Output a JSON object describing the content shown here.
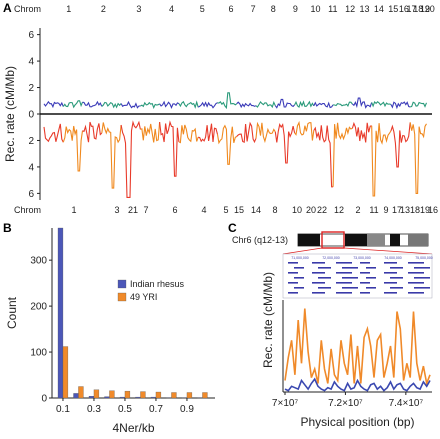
{
  "chart_data": [
    {
      "panel": "A",
      "type": "line",
      "ylabel": "Rec. rate (cM/Mb)",
      "ylim": [
        -6.5,
        6.5
      ],
      "yticks": [
        6,
        4,
        2,
        0,
        2,
        4,
        6
      ],
      "top_axis_label": "Chrom",
      "bottom_axis_label": "Chrom",
      "top_chromosomes": [
        "1",
        "2",
        "3",
        "4",
        "5",
        "6",
        "7",
        "8",
        "9",
        "10",
        "11",
        "12",
        "13",
        "14",
        "15",
        "16",
        "17",
        "18",
        "19",
        "20"
      ],
      "bottom_chromosomes": [
        "1",
        "3",
        "21",
        "7",
        "6",
        "4",
        "5",
        "15",
        "14",
        "8",
        "10",
        "20",
        "22",
        "12",
        "2",
        "11",
        "9",
        "17",
        "13",
        "18",
        "19",
        "16"
      ],
      "series": [
        {
          "name": "rhesus (top)",
          "color_segments": [
            "#3a3ab8",
            "#2a9a7a"
          ],
          "mean": 0.7,
          "spikes": [
            [
              0.48,
              1.6
            ],
            [
              0.09,
              1.0
            ],
            [
              0.62,
              1.1
            ],
            [
              0.82,
              1.2
            ]
          ]
        },
        {
          "name": "YRI (bottom)",
          "color_segments": [
            "#e83a2a",
            "#f0891e"
          ],
          "mean": -1.4,
          "spikes": [
            [
              0.09,
              -4.3
            ],
            [
              0.18,
              -5.6
            ],
            [
              0.22,
              -6.3
            ],
            [
              0.34,
              -4.7
            ],
            [
              0.48,
              -3.8
            ],
            [
              0.63,
              -3.7
            ],
            [
              0.75,
              -5.5
            ],
            [
              0.86,
              -6.2
            ],
            [
              0.92,
              -4.0
            ],
            [
              0.97,
              -6.0
            ]
          ]
        }
      ]
    },
    {
      "panel": "B",
      "type": "bar",
      "ylabel": "Count",
      "xlabel": "4Ner/kb",
      "ylim": [
        0,
        370
      ],
      "yticks": [
        0,
        100,
        200,
        300
      ],
      "xticks": [
        "0.1",
        "0.3",
        "0.5",
        "0.7",
        "0.9"
      ],
      "categories": [
        "0.1",
        "0.2",
        "0.3",
        "0.4",
        "0.5",
        "0.6",
        "0.7",
        "0.8",
        "0.9",
        "1.0"
      ],
      "series": [
        {
          "name": "Indian rhesus",
          "color": "#4c57b8",
          "values": [
            370,
            10,
            4,
            3,
            2,
            2,
            2,
            1,
            1,
            1
          ]
        },
        {
          "name": "49 YRI",
          "color": "#f08a2a",
          "values": [
            112,
            25,
            18,
            16,
            15,
            14,
            13,
            12,
            12,
            12
          ]
        }
      ]
    },
    {
      "panel": "C",
      "type": "line",
      "ylabel": "Rec. rate (cM/Mb)",
      "xlabel": "Physical position (bp)",
      "ylim": [
        0,
        3.2
      ],
      "xlim": [
        70000000,
        74800000
      ],
      "xticks": [
        "7×10⁷",
        "7.2×10⁷",
        "7.4×10⁷"
      ],
      "chrom_label": "Chr6 (q12-13)",
      "gene_track_positions": [
        "71,000,000",
        "72,000,000",
        "73,000,000",
        "74,000,000",
        "75,000,000"
      ],
      "series": [
        {
          "name": "49 YRI",
          "color": "#f08a2a",
          "values": [
            0.4,
            1.2,
            1.8,
            0.6,
            2.5,
            1.0,
            2.9,
            1.4,
            0.5,
            0.8,
            0.3,
            1.8,
            0.8,
            0.3,
            1.5,
            0.6,
            0.4,
            1.8,
            1.0,
            0.6,
            2.0,
            0.3,
            1.6,
            0.3,
            1.9,
            2.2,
            1.6,
            0.5,
            1.8,
            2.0,
            0.5,
            1.0,
            1.6,
            0.5,
            2.8,
            2.2,
            0.4,
            1.0,
            0.5,
            2.8,
            1.0,
            0.4,
            0.9,
            0.3,
            0.6
          ]
        },
        {
          "name": "Indian rhesus",
          "color": "#3a48b0",
          "values": [
            0.1,
            0.05,
            0.2,
            0.15,
            0.1,
            0.4,
            0.25,
            0.1,
            0.3,
            0.45,
            0.2,
            0.1,
            0.05,
            0.15,
            0.1,
            0.35,
            0.2,
            0.1,
            0.05,
            0.3,
            0.1,
            0.15,
            0.4,
            0.2,
            0.1,
            0.05,
            0.25,
            0.3,
            0.1,
            0.2,
            0.05,
            0.15,
            0.35,
            0.1,
            0.25,
            0.3,
            0.1,
            0.05,
            0.2,
            0.3,
            0.15,
            0.1,
            0.35,
            0.2,
            0.4
          ]
        }
      ]
    }
  ]
}
